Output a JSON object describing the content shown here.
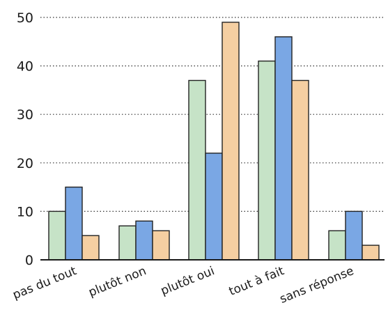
{
  "chart_data": {
    "type": "bar",
    "categories": [
      "pas du tout",
      "plutôt non",
      "plutôt oui",
      "tout à fait",
      "sans réponse"
    ],
    "series": [
      {
        "color": "#c6e3c7",
        "values": [
          10,
          7,
          37,
          41,
          6
        ]
      },
      {
        "color": "#7aa7e4",
        "values": [
          15,
          8,
          22,
          46,
          10
        ]
      },
      {
        "color": "#f5cfa2",
        "values": [
          5,
          6,
          49,
          37,
          3
        ]
      }
    ],
    "title": "",
    "xlabel": "",
    "ylabel": "",
    "ylim": [
      0,
      50
    ],
    "yticks": [
      "0",
      "10",
      "20",
      "30",
      "40",
      "50"
    ],
    "grid": "horizontal dotted",
    "legend": "none",
    "bar_outline_color": "#222222",
    "grid_color": "#333333"
  }
}
